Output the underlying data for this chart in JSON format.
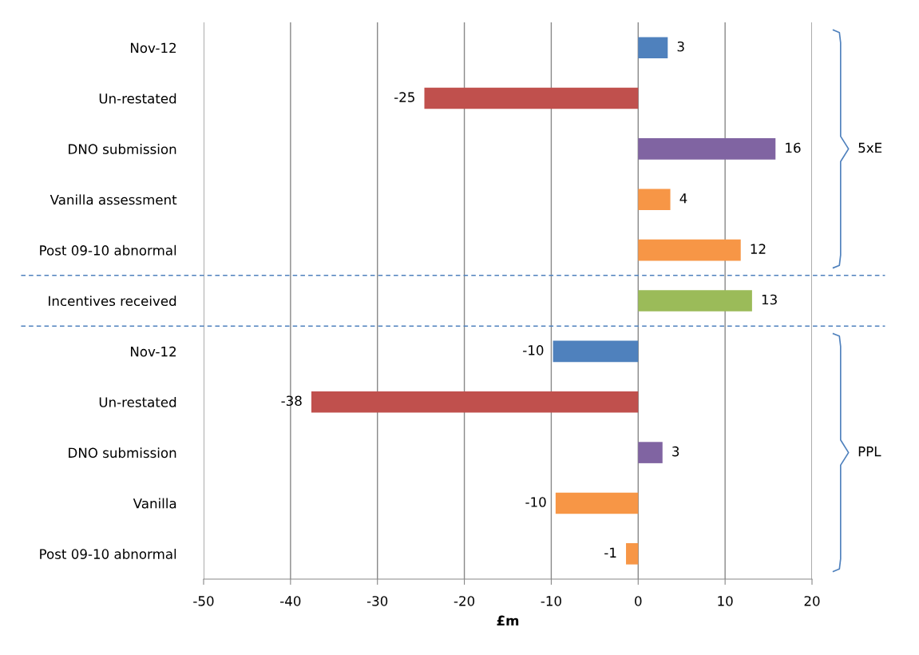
{
  "chart_data": {
    "type": "bar",
    "orientation": "horizontal",
    "xlabel": "£m",
    "categories": [
      "Nov-12",
      "Un-restated",
      "DNO submission",
      "Vanilla assessment",
      "Post 09-10 abnormal",
      "Incentives received",
      "Nov-12",
      "Un-restated",
      "DNO submission",
      "Vanilla",
      "Post 09-10 abnormal"
    ],
    "values": [
      3.4,
      -24.6,
      15.8,
      3.7,
      11.8,
      13.1,
      -9.8,
      -37.6,
      2.8,
      -9.5,
      -1.4
    ],
    "value_labels": [
      "3",
      "-25",
      "16",
      "4",
      "12",
      "13",
      "-10",
      "-38",
      "3",
      "-10",
      "-1"
    ],
    "colors": [
      "#4f81bd",
      "#c0504d",
      "#8064a2",
      "#f79646",
      "#f79646",
      "#9bbb59",
      "#4f81bd",
      "#c0504d",
      "#8064a2",
      "#f79646",
      "#f79646"
    ],
    "xlim": [
      -50,
      20
    ],
    "xticks": [
      -50,
      -40,
      -30,
      -20,
      -10,
      0,
      10,
      20
    ],
    "grid": "x",
    "annotations": [
      "5xE",
      "PPL"
    ]
  }
}
